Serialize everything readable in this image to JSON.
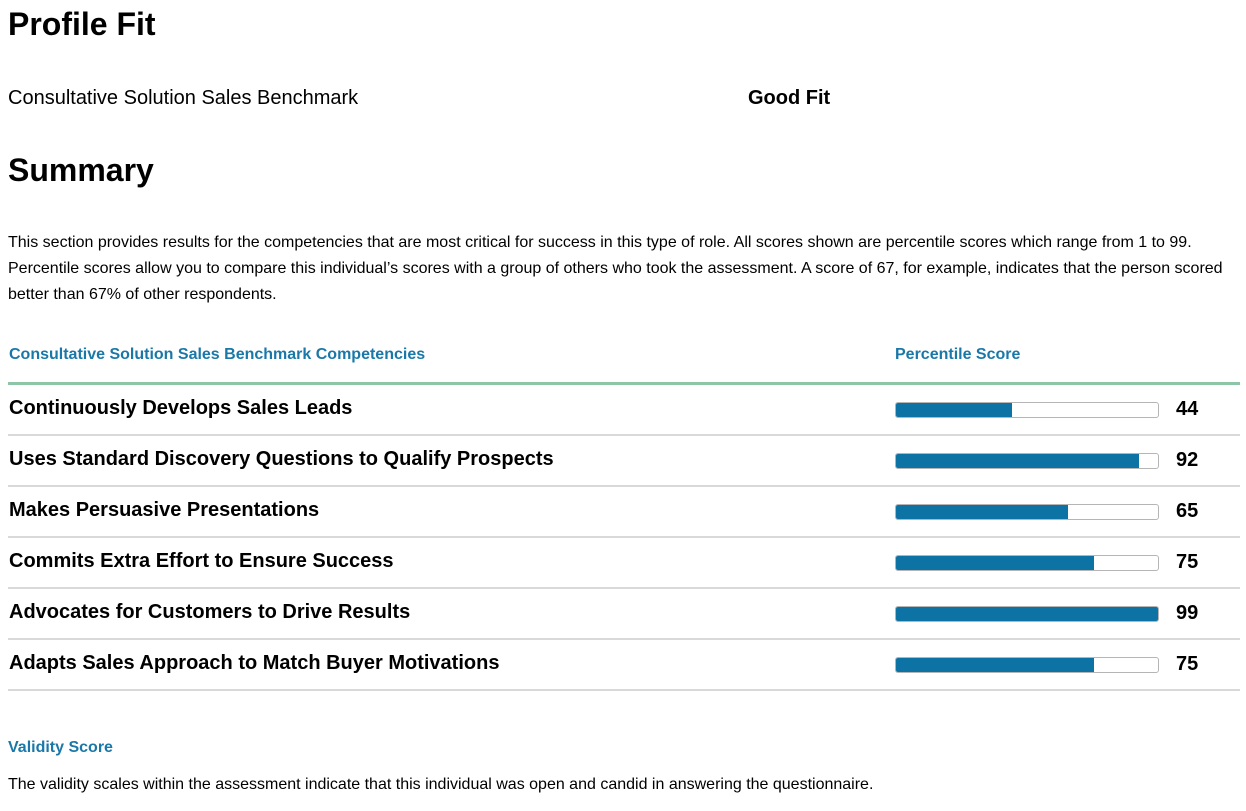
{
  "profile_fit": {
    "title": "Profile Fit",
    "benchmark_name": "Consultative Solution Sales Benchmark",
    "fit_result": "Good Fit"
  },
  "summary": {
    "title": "Summary",
    "intro": "This section provides results for the competencies that are most critical for success in this type of role. All scores shown are percentile scores which range from 1 to 99. Percentile scores allow you to compare this individual’s scores with a group of others who took the assessment. A score of 67, for example, indicates that the person scored better than 67% of other respondents."
  },
  "competencies": {
    "header_competency": "Consultative Solution Sales Benchmark Competencies",
    "header_score": "Percentile Score",
    "score_max": 99,
    "bar_color": "#0d73a4",
    "items": [
      {
        "name": "Continuously Develops Sales Leads",
        "score": 44
      },
      {
        "name": "Uses Standard Discovery Questions to Qualify Prospects",
        "score": 92
      },
      {
        "name": "Makes Persuasive Presentations",
        "score": 65
      },
      {
        "name": "Commits Extra Effort to Ensure Success",
        "score": 75
      },
      {
        "name": "Advocates for Customers to Drive Results",
        "score": 99
      },
      {
        "name": "Adapts Sales Approach to Match Buyer Motivations",
        "score": 75
      }
    ]
  },
  "validity": {
    "title": "Validity Score",
    "text": "The validity scales within the assessment indicate that this individual was open and candid in answering the questionnaire."
  },
  "colors": {
    "accent_text": "#1a78a8",
    "header_rule": "#8fc5a7",
    "row_divider": "#d9d9d9"
  }
}
